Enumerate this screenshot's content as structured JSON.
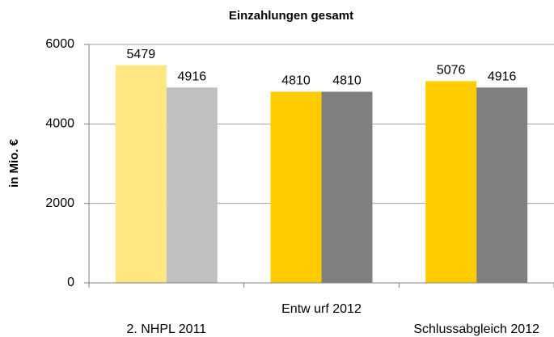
{
  "chart_data": {
    "type": "bar",
    "title": "Einzahlungen gesamt",
    "y_label": "in Mio. €",
    "categories": [
      "2. NHPL 2011",
      "Entw urf 2012",
      "Schlussabgleich 2012"
    ],
    "series": [
      {
        "colors": [
          "#ffe680",
          "#ffcc00",
          "#ffcc00"
        ],
        "values": [
          5479,
          4810,
          5076
        ]
      },
      {
        "colors": [
          "#c0c0c0",
          "#808080",
          "#808080"
        ],
        "values": [
          4916,
          4810,
          4916
        ]
      }
    ],
    "ylim": [
      0,
      6000
    ],
    "yticks": [
      0,
      2000,
      4000,
      6000
    ],
    "grid": true
  }
}
